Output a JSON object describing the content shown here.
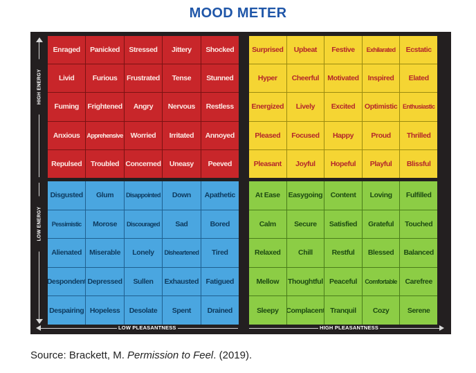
{
  "title": "MOOD METER",
  "axes": {
    "high_energy": "HIGH ENERGY",
    "low_energy": "LOW ENERGY",
    "low_pleasantness": "LOW PLEASANTNESS",
    "high_pleasantness": "HIGH PLEASANTNESS"
  },
  "quadrants": {
    "red": [
      [
        "Enraged",
        "Panicked",
        "Stressed",
        "Jittery",
        "Shocked"
      ],
      [
        "Livid",
        "Furious",
        "Frustrated",
        "Tense",
        "Stunned"
      ],
      [
        "Fuming",
        "Frightened",
        "Angry",
        "Nervous",
        "Restless"
      ],
      [
        "Anxious",
        "Apprehensive",
        "Worried",
        "Irritated",
        "Annoyed"
      ],
      [
        "Repulsed",
        "Troubled",
        "Concerned",
        "Uneasy",
        "Peeved"
      ]
    ],
    "yellow": [
      [
        "Surprised",
        "Upbeat",
        "Festive",
        "Exhilarated",
        "Ecstatic"
      ],
      [
        "Hyper",
        "Cheerful",
        "Motivated",
        "Inspired",
        "Elated"
      ],
      [
        "Energized",
        "Lively",
        "Excited",
        "Optimistic",
        "Enthusiastic"
      ],
      [
        "Pleased",
        "Focused",
        "Happy",
        "Proud",
        "Thrilled"
      ],
      [
        "Pleasant",
        "Joyful",
        "Hopeful",
        "Playful",
        "Blissful"
      ]
    ],
    "blue": [
      [
        "Disgusted",
        "Glum",
        "Disappointed",
        "Down",
        "Apathetic"
      ],
      [
        "Pessimistic",
        "Morose",
        "Discouraged",
        "Sad",
        "Bored"
      ],
      [
        "Alienated",
        "Miserable",
        "Lonely",
        "Disheartened",
        "Tired"
      ],
      [
        "Despondent",
        "Depressed",
        "Sullen",
        "Exhausted",
        "Fatigued"
      ],
      [
        "Despairing",
        "Hopeless",
        "Desolate",
        "Spent",
        "Drained"
      ]
    ],
    "green": [
      [
        "At Ease",
        "Easygoing",
        "Content",
        "Loving",
        "Fulfilled"
      ],
      [
        "Calm",
        "Secure",
        "Satisfied",
        "Grateful",
        "Touched"
      ],
      [
        "Relaxed",
        "Chill",
        "Restful",
        "Blessed",
        "Balanced"
      ],
      [
        "Mellow",
        "Thoughtful",
        "Peaceful",
        "Comfortable",
        "Carefree"
      ],
      [
        "Sleepy",
        "Complacent",
        "Tranquil",
        "Cozy",
        "Serene"
      ]
    ]
  },
  "colors": {
    "red": "#c8262a",
    "yellow": "#f5d533",
    "blue": "#4aa6e0",
    "green": "#8ccd45",
    "title": "#1f56a8"
  },
  "source": {
    "prefix": "Source: Brackett, M. ",
    "book": "Permission to Feel",
    "suffix": ". (2019)."
  }
}
